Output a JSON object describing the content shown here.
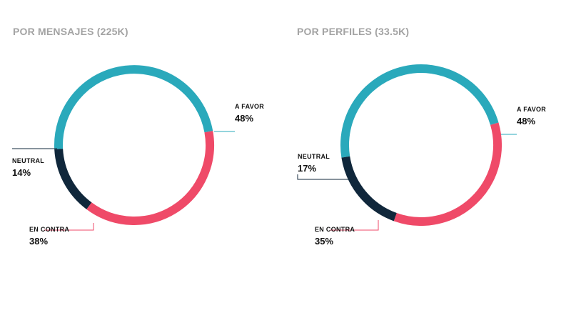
{
  "chart_data": [
    {
      "type": "pie",
      "title": "POR MENSAJES (225K)",
      "slices": [
        {
          "label": "A FAVOR",
          "value": 48,
          "display": "48%",
          "color": "#2aa9bb"
        },
        {
          "label": "EN CONTRA",
          "value": 38,
          "display": "38%",
          "color": "#ef4a68"
        },
        {
          "label": "NEUTRAL",
          "value": 14,
          "display": "14%",
          "color": "#10273b"
        }
      ],
      "donut": true,
      "legend": "none"
    },
    {
      "type": "pie",
      "title": "POR PERFILES (33.5K)",
      "slices": [
        {
          "label": "A FAVOR",
          "value": 48,
          "display": "48%",
          "color": "#2aa9bb"
        },
        {
          "label": "EN CONTRA",
          "value": 35,
          "display": "35%",
          "color": "#ef4a68"
        },
        {
          "label": "NEUTRAL",
          "value": 17,
          "display": "17%",
          "color": "#10273b"
        }
      ],
      "donut": true,
      "legend": "none"
    }
  ]
}
